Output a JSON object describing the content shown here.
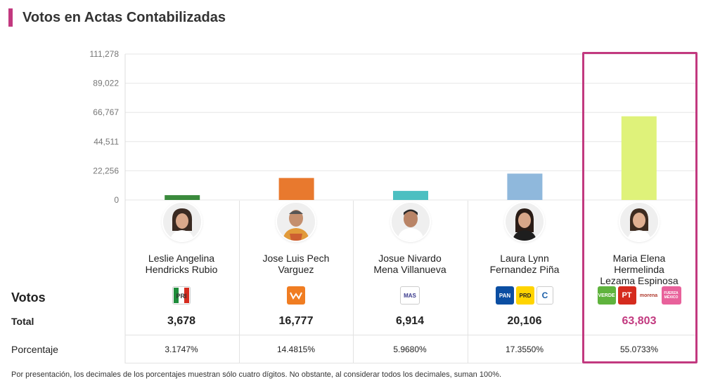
{
  "title": "Votos en Actas Contabilizadas",
  "colors": {
    "accent": "#c2397f",
    "grid": "#e6e6e6"
  },
  "chart_data": {
    "type": "bar",
    "ylim": [
      0,
      111278
    ],
    "yticks": [
      "111,278",
      "89,022",
      "66,767",
      "44,511",
      "22,256",
      "0"
    ],
    "ytick_values": [
      111278,
      89022,
      66767,
      44511,
      22256,
      0
    ],
    "grid": true,
    "categories": [
      "Leslie Angelina Hendricks Rubio",
      "Jose Luis Pech Varguez",
      "Josue Nivardo Mena Villanueva",
      "Laura Lynn Fernandez Piña",
      "Maria Elena Hermelinda Lezama Espinosa"
    ],
    "values": [
      3678,
      16777,
      6914,
      20106,
      63803
    ],
    "bar_colors": [
      "#3a8a3c",
      "#e8792e",
      "#4cbfc1",
      "#8fb8dc",
      "#dff27a"
    ]
  },
  "candidates": [
    {
      "name_line1": "Leslie Angelina",
      "name_line2": "Hendricks Rubio",
      "name_line3": "",
      "total": "3,678",
      "pct": "3.1747%",
      "parties": [
        "PRI"
      ]
    },
    {
      "name_line1": "Jose Luis Pech",
      "name_line2": "Varguez",
      "name_line3": "",
      "total": "16,777",
      "pct": "14.4815%",
      "parties": [
        "MOVIMIENTO CIUDADANO"
      ]
    },
    {
      "name_line1": "Josue Nivardo",
      "name_line2": "Mena Villanueva",
      "name_line3": "",
      "total": "6,914",
      "pct": "5.9680%",
      "parties": [
        "MAS"
      ]
    },
    {
      "name_line1": "Laura Lynn",
      "name_line2": "Fernandez Piña",
      "name_line3": "",
      "total": "20,106",
      "pct": "17.3550%",
      "parties": [
        "PAN",
        "PRD",
        "CQ"
      ]
    },
    {
      "name_line1": "Maria Elena",
      "name_line2": "Hermelinda",
      "name_line3": "Lezama Espinosa",
      "total": "63,803",
      "pct": "55.0733%",
      "parties": [
        "VERDE",
        "PT",
        "morena",
        "FUERZA MÉXICO"
      ]
    }
  ],
  "rows": {
    "votos": "Votos",
    "total": "Total",
    "porcentaje": "Porcentaje"
  },
  "footnote": "Por presentación, los decimales de los porcentajes muestran sólo cuatro dígitos. No obstante, al considerar todos los decimales, suman 100%."
}
